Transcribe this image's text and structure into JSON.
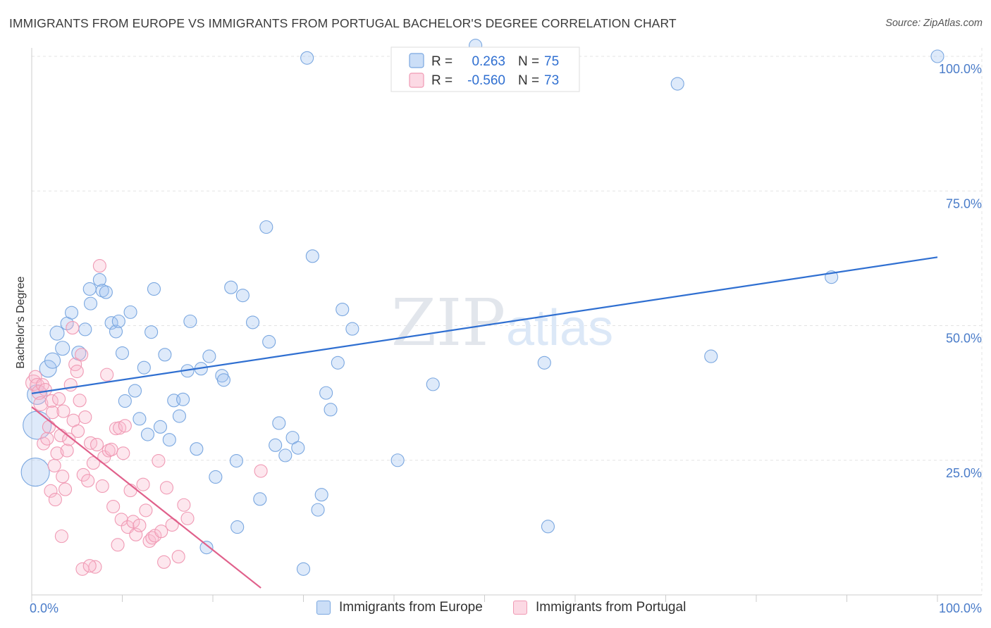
{
  "chart_data": {
    "type": "scatter",
    "title": "IMMIGRANTS FROM EUROPE VS IMMIGRANTS FROM PORTUGAL BACHELOR'S DEGREE CORRELATION CHART",
    "source": "Source: ZipAtlas.com",
    "xlabel": "",
    "ylabel": "Bachelor's Degree",
    "xlim": [
      0,
      100
    ],
    "ylim": [
      0,
      100
    ],
    "x_tick_labels": [
      "0.0%",
      "100.0%"
    ],
    "y_ticks": [
      25,
      50,
      75,
      100
    ],
    "y_tick_labels": [
      "25.0%",
      "50.0%",
      "75.0%",
      "100.0%"
    ],
    "watermark": {
      "zip": "ZIP",
      "atlas": "atlas"
    },
    "legend": {
      "r_label": "R =",
      "n_label": "N =",
      "entries": [
        {
          "r": "0.263",
          "n": "75"
        },
        {
          "r": "-0.560",
          "n": "73"
        }
      ]
    },
    "series": [
      {
        "name": "Immigrants from Europe",
        "color": "#7aa7e0",
        "fill": "rgba(160,195,240,0.35)",
        "line_color": "#2f6fd1",
        "trend": {
          "x": [
            0,
            100
          ],
          "y": [
            37.4,
            62.7
          ]
        },
        "points": [
          [
            0.4,
            22.8,
            20
          ],
          [
            0.6,
            31.5,
            20
          ],
          [
            0.6,
            37.2,
            14
          ],
          [
            1.8,
            42.0,
            12
          ],
          [
            2.3,
            43.5,
            11
          ],
          [
            2.8,
            48.6,
            10
          ],
          [
            3.4,
            45.8,
            10
          ],
          [
            3.9,
            50.4,
            9
          ],
          [
            5.2,
            44.9,
            10
          ],
          [
            4.4,
            52.4,
            9
          ],
          [
            5.9,
            49.3,
            9
          ],
          [
            6.5,
            54.1,
            9
          ],
          [
            6.4,
            56.8,
            9
          ],
          [
            7.5,
            58.5,
            9
          ],
          [
            7.8,
            56.5,
            9
          ],
          [
            8.2,
            56.2,
            9
          ],
          [
            8.8,
            50.5,
            9
          ],
          [
            9.3,
            48.9,
            9
          ],
          [
            9.6,
            50.8,
            9
          ],
          [
            10.0,
            44.9,
            9
          ],
          [
            10.3,
            36.0,
            9
          ],
          [
            10.9,
            52.5,
            9
          ],
          [
            11.4,
            37.9,
            9
          ],
          [
            11.9,
            32.7,
            9
          ],
          [
            12.4,
            42.2,
            9
          ],
          [
            12.8,
            29.8,
            9
          ],
          [
            13.2,
            48.8,
            9
          ],
          [
            13.5,
            56.8,
            9
          ],
          [
            14.2,
            31.2,
            9
          ],
          [
            14.7,
            44.6,
            9
          ],
          [
            15.2,
            28.8,
            9
          ],
          [
            15.7,
            36.1,
            9
          ],
          [
            16.3,
            33.2,
            9
          ],
          [
            16.7,
            36.3,
            9
          ],
          [
            17.2,
            41.6,
            9
          ],
          [
            17.5,
            50.8,
            9
          ],
          [
            18.2,
            27.1,
            9
          ],
          [
            18.7,
            42.0,
            9
          ],
          [
            19.3,
            8.8,
            9
          ],
          [
            19.6,
            44.3,
            9
          ],
          [
            20.3,
            21.9,
            9
          ],
          [
            21.0,
            40.7,
            9
          ],
          [
            21.2,
            39.9,
            9
          ],
          [
            22.0,
            57.1,
            9
          ],
          [
            22.6,
            24.9,
            9
          ],
          [
            22.7,
            12.6,
            9
          ],
          [
            23.3,
            55.6,
            9
          ],
          [
            24.4,
            50.6,
            9
          ],
          [
            25.2,
            17.8,
            9
          ],
          [
            25.9,
            68.3,
            9
          ],
          [
            26.2,
            47.0,
            9
          ],
          [
            26.9,
            27.8,
            9
          ],
          [
            27.3,
            31.9,
            9
          ],
          [
            28.0,
            25.9,
            9
          ],
          [
            28.8,
            29.2,
            9
          ],
          [
            29.4,
            27.3,
            9
          ],
          [
            30.0,
            4.8,
            9
          ],
          [
            30.4,
            99.7,
            9
          ],
          [
            31.0,
            62.9,
            9
          ],
          [
            31.6,
            15.8,
            9
          ],
          [
            32.0,
            18.6,
            9
          ],
          [
            32.5,
            37.5,
            9
          ],
          [
            33.0,
            34.4,
            9
          ],
          [
            33.8,
            43.1,
            9
          ],
          [
            34.3,
            53.0,
            9
          ],
          [
            35.4,
            49.4,
            9
          ],
          [
            40.4,
            25.0,
            9
          ],
          [
            44.3,
            39.1,
            9
          ],
          [
            49.0,
            102.0,
            9
          ],
          [
            56.6,
            43.1,
            9
          ],
          [
            57.0,
            12.7,
            9
          ],
          [
            71.3,
            94.9,
            9
          ],
          [
            75.0,
            44.3,
            9
          ],
          [
            88.3,
            59.0,
            9
          ],
          [
            100.0,
            100.0,
            9
          ]
        ]
      },
      {
        "name": "Immigrants from Portugal",
        "color": "#f09ab4",
        "fill": "rgba(250,185,205,0.35)",
        "line_color": "#e0608b",
        "trend": {
          "x": [
            0,
            25.3
          ],
          "y": [
            34.9,
            1.3
          ]
        },
        "points": [
          [
            0.2,
            39.4,
            11
          ],
          [
            0.4,
            40.5,
            9
          ],
          [
            0.6,
            38.9,
            10
          ],
          [
            0.8,
            37.6,
            10
          ],
          [
            1.0,
            35.5,
            10
          ],
          [
            1.2,
            39.0,
            9
          ],
          [
            1.3,
            28.1,
            9
          ],
          [
            1.5,
            38.1,
            9
          ],
          [
            1.7,
            29.0,
            9
          ],
          [
            1.9,
            31.2,
            9
          ],
          [
            2.1,
            19.3,
            9
          ],
          [
            2.2,
            36.0,
            9
          ],
          [
            2.3,
            33.9,
            9
          ],
          [
            2.5,
            24.0,
            9
          ],
          [
            2.6,
            17.7,
            9
          ],
          [
            2.8,
            26.3,
            9
          ],
          [
            3.0,
            36.4,
            9
          ],
          [
            3.2,
            29.6,
            9
          ],
          [
            3.4,
            22.0,
            9
          ],
          [
            3.5,
            34.1,
            9
          ],
          [
            3.7,
            19.6,
            9
          ],
          [
            3.9,
            26.8,
            9
          ],
          [
            4.1,
            28.9,
            9
          ],
          [
            4.3,
            39.0,
            9
          ],
          [
            4.5,
            49.6,
            9
          ],
          [
            4.6,
            32.4,
            9
          ],
          [
            4.8,
            42.8,
            9
          ],
          [
            5.0,
            41.5,
            9
          ],
          [
            5.1,
            30.4,
            9
          ],
          [
            5.3,
            36.1,
            9
          ],
          [
            5.5,
            44.6,
            9
          ],
          [
            5.7,
            22.3,
            9
          ],
          [
            5.9,
            33.0,
            9
          ],
          [
            6.2,
            21.2,
            9
          ],
          [
            6.5,
            28.2,
            9
          ],
          [
            6.8,
            24.5,
            9
          ],
          [
            7.0,
            5.2,
            9
          ],
          [
            7.2,
            27.9,
            9
          ],
          [
            7.5,
            61.1,
            9
          ],
          [
            7.8,
            20.2,
            9
          ],
          [
            8.0,
            25.6,
            9
          ],
          [
            8.3,
            40.9,
            9
          ],
          [
            8.5,
            26.8,
            9
          ],
          [
            8.8,
            27.0,
            9
          ],
          [
            9.0,
            16.4,
            9
          ],
          [
            9.3,
            30.9,
            9
          ],
          [
            9.5,
            9.3,
            9
          ],
          [
            9.7,
            31.0,
            9
          ],
          [
            9.9,
            14.0,
            9
          ],
          [
            10.1,
            26.3,
            9
          ],
          [
            10.3,
            31.4,
            9
          ],
          [
            10.6,
            12.6,
            9
          ],
          [
            10.9,
            19.4,
            9
          ],
          [
            11.2,
            13.6,
            9
          ],
          [
            11.5,
            11.2,
            9
          ],
          [
            11.9,
            12.9,
            9
          ],
          [
            12.3,
            20.5,
            9
          ],
          [
            12.6,
            15.7,
            9
          ],
          [
            13.0,
            10.0,
            9
          ],
          [
            13.3,
            10.6,
            9
          ],
          [
            13.6,
            11.0,
            9
          ],
          [
            14.0,
            24.9,
            9
          ],
          [
            14.3,
            11.8,
            9
          ],
          [
            14.6,
            6.1,
            9
          ],
          [
            14.9,
            19.9,
            9
          ],
          [
            15.5,
            13.0,
            9
          ],
          [
            16.2,
            7.1,
            9
          ],
          [
            16.8,
            16.7,
            9
          ],
          [
            17.2,
            14.2,
            9
          ],
          [
            3.3,
            10.9,
            9
          ],
          [
            5.6,
            4.8,
            9
          ],
          [
            6.4,
            5.4,
            9
          ],
          [
            25.3,
            23.0,
            9
          ]
        ]
      }
    ]
  }
}
